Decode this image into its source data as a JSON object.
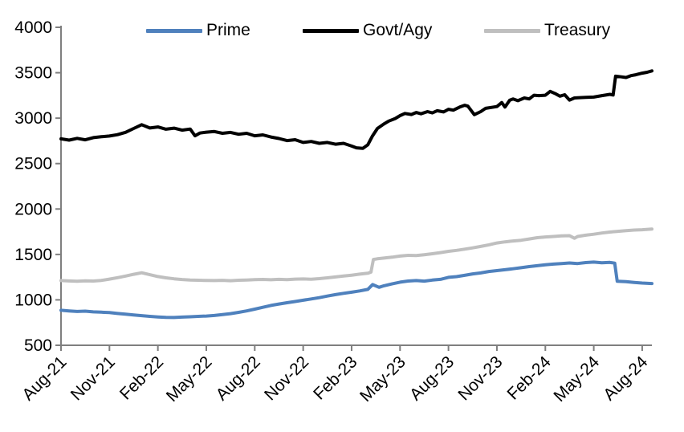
{
  "chart_data": {
    "type": "line",
    "title": "",
    "xlabel": "",
    "ylabel": "",
    "x_unit": "months since Aug-2021",
    "x_range": [
      0,
      36.6
    ],
    "ylim": [
      500,
      4000
    ],
    "grid": false,
    "legend_position": "top",
    "axis_color": "#7f7f7f",
    "text_color": "#000000",
    "y_axis": {
      "ticks": [
        500,
        1000,
        1500,
        2000,
        2500,
        3000,
        3500,
        4000
      ]
    },
    "x_axis": {
      "tick_labels": [
        "Aug-21",
        "Nov-21",
        "Feb-22",
        "May-22",
        "Aug-22",
        "Nov-22",
        "Feb-23",
        "May-23",
        "Aug-23",
        "Nov-23",
        "Feb-24",
        "May-24",
        "Aug-24"
      ],
      "tick_months": [
        0,
        3,
        6,
        9,
        12,
        15,
        18,
        21,
        24,
        27,
        30,
        33,
        36
      ]
    },
    "series": [
      {
        "name": "Prime",
        "color": "#4f81bd",
        "x": [
          0,
          0.5,
          1,
          1.5,
          2,
          2.5,
          3,
          3.5,
          4,
          4.5,
          5,
          5.5,
          6,
          6.5,
          7,
          7.5,
          8,
          8.5,
          9,
          9.5,
          10,
          10.5,
          11,
          11.5,
          12,
          12.5,
          13,
          13.5,
          14,
          14.5,
          15,
          15.5,
          16,
          16.5,
          17,
          17.5,
          18,
          18.5,
          19,
          19.3,
          19.7,
          20,
          20.5,
          21,
          21.5,
          22,
          22.5,
          23,
          23.5,
          24,
          24.5,
          25,
          25.5,
          26,
          26.5,
          27,
          27.5,
          28,
          28.5,
          29,
          29.5,
          30,
          30.5,
          31,
          31.5,
          32,
          32.5,
          33,
          33.5,
          34,
          34.3,
          34.45,
          35,
          35.5,
          36,
          36.6
        ],
        "values": [
          885,
          878,
          872,
          876,
          868,
          864,
          860,
          850,
          842,
          834,
          826,
          818,
          812,
          808,
          806,
          810,
          814,
          818,
          822,
          828,
          838,
          848,
          862,
          878,
          898,
          918,
          938,
          954,
          968,
          982,
          996,
          1010,
          1024,
          1042,
          1058,
          1072,
          1084,
          1098,
          1115,
          1168,
          1138,
          1155,
          1175,
          1195,
          1207,
          1212,
          1206,
          1218,
          1226,
          1248,
          1256,
          1270,
          1286,
          1296,
          1312,
          1322,
          1332,
          1342,
          1354,
          1366,
          1376,
          1386,
          1394,
          1400,
          1406,
          1400,
          1410,
          1416,
          1408,
          1412,
          1404,
          1205,
          1200,
          1192,
          1185,
          1180
        ]
      },
      {
        "name": "Govt/Agy",
        "color": "#000000",
        "x": [
          0,
          0.5,
          1,
          1.5,
          2,
          2.5,
          3,
          3.5,
          4,
          4.5,
          5,
          5.5,
          6,
          6.5,
          7,
          7.5,
          8,
          8.3,
          8.6,
          9,
          9.5,
          10,
          10.5,
          11,
          11.5,
          12,
          12.5,
          13,
          13.5,
          14,
          14.5,
          15,
          15.5,
          16,
          16.5,
          17,
          17.5,
          18,
          18.3,
          18.7,
          19,
          19.3,
          19.6,
          20,
          20.3,
          20.7,
          21,
          21.3,
          21.7,
          22,
          22.3,
          22.7,
          23,
          23.3,
          23.7,
          24,
          24.3,
          24.7,
          25,
          25.2,
          25.6,
          26,
          26.3,
          27,
          27.3,
          27.5,
          27.8,
          28,
          28.3,
          28.7,
          29,
          29.3,
          29.6,
          30,
          30.3,
          30.6,
          30.9,
          31.2,
          31.5,
          31.8,
          32,
          32.5,
          33,
          33.5,
          34,
          34.2,
          34.35,
          34.7,
          35,
          35.3,
          35.6,
          36,
          36.3,
          36.6
        ],
        "values": [
          2772,
          2758,
          2778,
          2762,
          2786,
          2795,
          2803,
          2818,
          2844,
          2886,
          2928,
          2892,
          2903,
          2878,
          2890,
          2868,
          2880,
          2806,
          2836,
          2846,
          2853,
          2833,
          2843,
          2823,
          2833,
          2806,
          2816,
          2793,
          2776,
          2753,
          2763,
          2733,
          2743,
          2723,
          2733,
          2713,
          2723,
          2693,
          2673,
          2668,
          2706,
          2806,
          2886,
          2936,
          2968,
          2996,
          3028,
          3052,
          3040,
          3062,
          3048,
          3072,
          3058,
          3082,
          3068,
          3098,
          3088,
          3122,
          3142,
          3132,
          3038,
          3072,
          3108,
          3128,
          3172,
          3122,
          3198,
          3212,
          3192,
          3222,
          3212,
          3252,
          3248,
          3252,
          3295,
          3272,
          3242,
          3258,
          3198,
          3222,
          3225,
          3228,
          3232,
          3248,
          3262,
          3255,
          3462,
          3455,
          3448,
          3468,
          3478,
          3495,
          3505,
          3520
        ]
      },
      {
        "name": "Treasury",
        "color": "#bfbfbf",
        "x": [
          0,
          0.5,
          1,
          1.5,
          2,
          2.5,
          3,
          3.5,
          4,
          4.5,
          5,
          5.5,
          6,
          6.5,
          7,
          7.5,
          8,
          8.5,
          9,
          9.5,
          10,
          10.5,
          11,
          11.5,
          12,
          12.5,
          13,
          13.5,
          14,
          14.5,
          15,
          15.5,
          16,
          16.5,
          17,
          17.5,
          18,
          18.5,
          19,
          19.2,
          19.35,
          19.6,
          20,
          20.5,
          21,
          21.5,
          22,
          22.5,
          23,
          23.5,
          24,
          24.5,
          25,
          25.5,
          26,
          26.5,
          27,
          27.5,
          28,
          28.5,
          29,
          29.5,
          30,
          30.5,
          31,
          31.5,
          31.8,
          32,
          32.5,
          33,
          33.5,
          34,
          34.5,
          35,
          35.5,
          36,
          36.6
        ],
        "values": [
          1212,
          1208,
          1204,
          1210,
          1207,
          1214,
          1228,
          1244,
          1262,
          1281,
          1298,
          1277,
          1257,
          1242,
          1232,
          1224,
          1219,
          1216,
          1213,
          1212,
          1215,
          1211,
          1216,
          1219,
          1222,
          1225,
          1221,
          1226,
          1222,
          1228,
          1230,
          1227,
          1234,
          1242,
          1252,
          1262,
          1272,
          1283,
          1293,
          1305,
          1445,
          1452,
          1460,
          1470,
          1482,
          1490,
          1487,
          1497,
          1508,
          1520,
          1534,
          1545,
          1558,
          1572,
          1588,
          1606,
          1626,
          1638,
          1648,
          1656,
          1670,
          1684,
          1692,
          1698,
          1704,
          1706,
          1678,
          1698,
          1712,
          1722,
          1736,
          1746,
          1754,
          1762,
          1768,
          1772,
          1780
        ]
      }
    ]
  },
  "legend": {
    "items": [
      {
        "label": "Prime"
      },
      {
        "label": "Govt/Agy"
      },
      {
        "label": "Treasury"
      }
    ]
  }
}
